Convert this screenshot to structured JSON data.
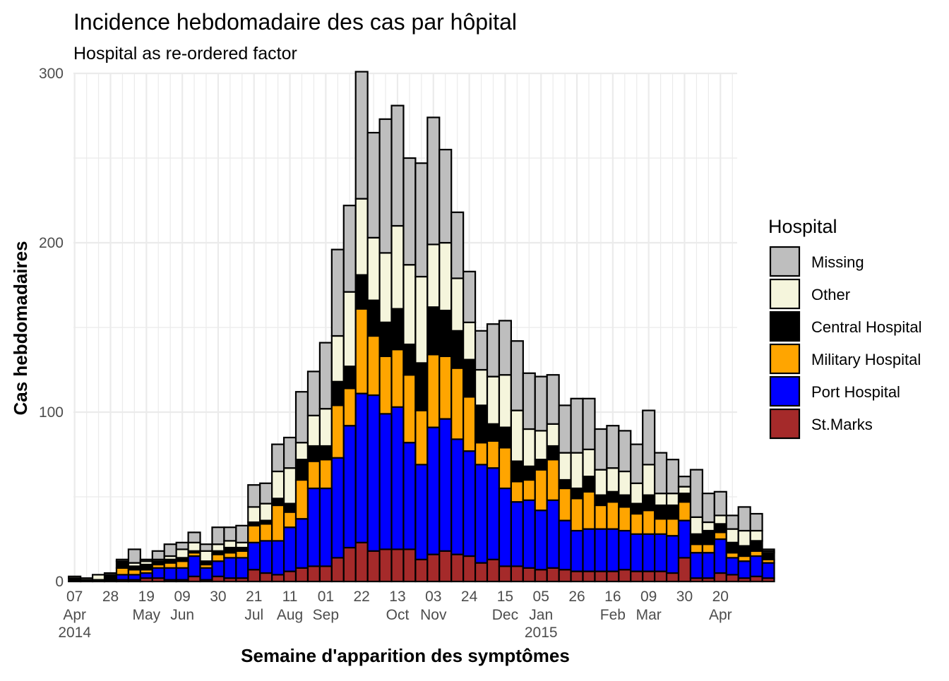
{
  "chart_data": {
    "type": "bar",
    "stacked": true,
    "title": "Incidence hebdomadaire des cas par hôpital",
    "subtitle": "Hospital as re-ordered factor",
    "xlabel": "Semaine d'apparition des symptômes",
    "ylabel": "Cas hebdomadaires",
    "ylim": [
      0,
      300
    ],
    "y_ticks": [
      0,
      100,
      200,
      300
    ],
    "x_ticks": [
      {
        "day": "07",
        "month": "Apr",
        "year": "2014",
        "week": 0
      },
      {
        "day": "28",
        "week": 3
      },
      {
        "day": "19",
        "month": "May",
        "week": 6
      },
      {
        "day": "09",
        "month": "Jun",
        "week": 9
      },
      {
        "day": "30",
        "week": 12
      },
      {
        "day": "21",
        "month": "Jul",
        "week": 15
      },
      {
        "day": "11",
        "month": "Aug",
        "week": 18
      },
      {
        "day": "01",
        "month": "Sep",
        "week": 21
      },
      {
        "day": "22",
        "week": 24
      },
      {
        "day": "13",
        "month": "Oct",
        "week": 27
      },
      {
        "day": "03",
        "month": "Nov",
        "week": 30
      },
      {
        "day": "24",
        "week": 33
      },
      {
        "day": "15",
        "month": "Dec",
        "week": 36
      },
      {
        "day": "05",
        "month": "Jan",
        "year": "2015",
        "week": 39
      },
      {
        "day": "26",
        "week": 42
      },
      {
        "day": "16",
        "month": "Feb",
        "week": 45
      },
      {
        "day": "09",
        "month": "Mar",
        "week": 48
      },
      {
        "day": "30",
        "week": 51
      },
      {
        "day": "20",
        "month": "Apr",
        "week": 54
      }
    ],
    "x_range_weeks": [
      -0.1,
      55.4
    ],
    "legend": {
      "title": "Hospital",
      "position": "right"
    },
    "series": [
      {
        "name": "St.Marks",
        "color": "#A52A2A",
        "values": [
          0,
          0,
          0,
          0,
          1,
          1,
          2,
          2,
          1,
          1,
          3,
          1,
          3,
          2,
          2,
          7,
          5,
          4,
          6,
          8,
          9,
          9,
          14,
          20,
          23,
          18,
          19,
          19,
          19,
          13,
          16,
          18,
          16,
          15,
          11,
          13,
          9,
          9,
          8,
          7,
          8,
          7,
          6,
          6,
          6,
          6,
          7,
          6,
          6,
          6,
          5,
          14,
          2,
          2,
          5,
          4,
          2,
          3,
          2
        ]
      },
      {
        "name": "Port Hospital",
        "color": "#0000FF",
        "values": [
          0,
          0,
          0,
          0,
          3,
          3,
          3,
          6,
          7,
          7,
          12,
          7,
          9,
          12,
          12,
          16,
          19,
          20,
          26,
          29,
          46,
          46,
          59,
          72,
          88,
          92,
          80,
          84,
          63,
          56,
          75,
          78,
          68,
          62,
          58,
          54,
          46,
          38,
          40,
          35,
          40,
          29,
          24,
          25,
          25,
          25,
          23,
          22,
          22,
          22,
          22,
          22,
          15,
          15,
          20,
          10,
          10,
          12,
          9
        ]
      },
      {
        "name": "Military Hospital",
        "color": "#FFA500",
        "values": [
          0,
          0,
          0,
          0,
          4,
          3,
          2,
          2,
          3,
          4,
          2,
          2,
          4,
          3,
          4,
          10,
          10,
          21,
          9,
          23,
          16,
          17,
          31,
          22,
          50,
          35,
          34,
          34,
          40,
          32,
          43,
          37,
          42,
          32,
          13,
          16,
          24,
          12,
          12,
          24,
          24,
          19,
          19,
          22,
          14,
          16,
          14,
          12,
          14,
          9,
          10,
          11,
          5,
          5,
          4,
          3,
          3,
          3,
          2
        ]
      },
      {
        "name": "Central Hospital",
        "color": "#000000",
        "values": [
          2,
          1,
          1,
          4,
          4,
          2,
          3,
          2,
          2,
          2,
          1,
          2,
          2,
          3,
          2,
          2,
          2,
          4,
          5,
          12,
          9,
          8,
          14,
          13,
          20,
          21,
          20,
          24,
          18,
          28,
          28,
          27,
          22,
          22,
          22,
          10,
          12,
          12,
          8,
          6,
          8,
          5,
          6,
          9,
          6,
          6,
          7,
          6,
          9,
          8,
          8,
          5,
          6,
          8,
          5,
          6,
          6,
          6,
          4
        ]
      },
      {
        "name": "Other",
        "color": "#F5F5DC",
        "values": [
          1,
          1,
          3,
          1,
          1,
          2,
          2,
          1,
          2,
          5,
          5,
          6,
          4,
          4,
          3,
          9,
          10,
          16,
          21,
          10,
          18,
          22,
          27,
          44,
          45,
          37,
          41,
          49,
          47,
          51,
          37,
          40,
          31,
          22,
          21,
          28,
          31,
          30,
          22,
          17,
          13,
          16,
          21,
          16,
          15,
          14,
          14,
          12,
          18,
          7,
          7,
          4,
          10,
          5,
          5,
          8,
          9,
          6,
          1
        ]
      },
      {
        "name": "Missing",
        "color": "#BEBEBE",
        "values": [
          0,
          0,
          0,
          0,
          0,
          8,
          1,
          5,
          7,
          4,
          6,
          4,
          10,
          8,
          10,
          13,
          12,
          16,
          18,
          30,
          26,
          39,
          51,
          51,
          75,
          62,
          79,
          71,
          63,
          67,
          75,
          55,
          39,
          30,
          23,
          31,
          32,
          41,
          33,
          32,
          29,
          28,
          32,
          30,
          24,
          25,
          24,
          23,
          32,
          24,
          20,
          6,
          28,
          17,
          14,
          8,
          14,
          10,
          1
        ]
      }
    ]
  }
}
